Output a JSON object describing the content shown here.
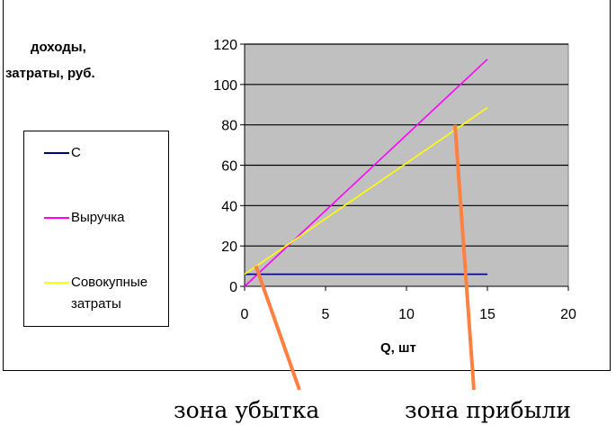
{
  "chart_data": {
    "type": "line",
    "ylabel_lines": [
      "доходы,",
      "затраты, руб."
    ],
    "xlabel": "Q, шт",
    "xlim": [
      0,
      20
    ],
    "ylim": [
      0,
      120
    ],
    "x_ticks": [
      0,
      5,
      10,
      15,
      20
    ],
    "y_ticks": [
      0,
      20,
      40,
      60,
      80,
      100,
      120
    ],
    "grid": "horizontal",
    "legend_position": "left",
    "plot_background": "#c0c0c0",
    "series": [
      {
        "name": "C",
        "color": "#000080",
        "x": [
          0,
          15
        ],
        "y": [
          6,
          6
        ]
      },
      {
        "name": "Выручка",
        "color": "#ff00ff",
        "x": [
          0,
          15
        ],
        "y": [
          0,
          112.5
        ]
      },
      {
        "name": "Совокупные затраты",
        "color": "#ffff00",
        "x": [
          0,
          15
        ],
        "y": [
          6,
          88.5
        ]
      }
    ],
    "annotations": [
      {
        "text": "зона убытка",
        "color": "#ff8040",
        "point": [
          0.7,
          10
        ]
      },
      {
        "text": "зона прибыли",
        "color": "#ff8040",
        "point": [
          13,
          80
        ]
      }
    ]
  },
  "legend": {
    "items": [
      {
        "lines": [
          "C"
        ],
        "color": "#000080"
      },
      {
        "lines": [
          "Выручка"
        ],
        "color": "#ff00ff"
      },
      {
        "lines": [
          "Совокупные",
          "затраты"
        ],
        "color": "#ffff00"
      }
    ]
  }
}
